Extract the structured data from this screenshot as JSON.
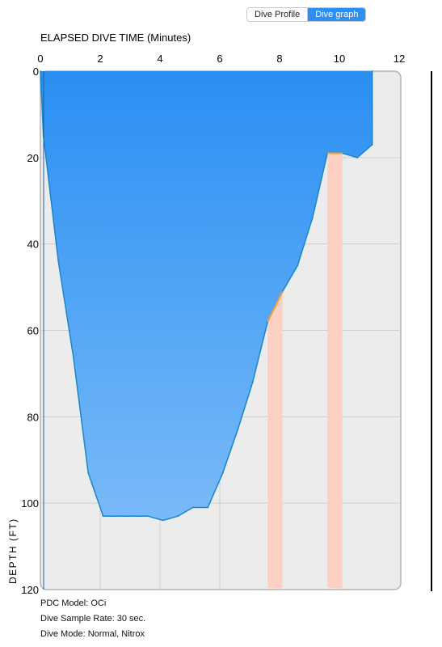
{
  "toolbar": {
    "dive_profile_label": "Dive Profile",
    "dive_graph_label": "Dive graph"
  },
  "chart_data": {
    "type": "area",
    "title": "",
    "xlabel": "ELAPSED DIVE TIME (Minutes)",
    "ylabel": "DEPTH (FT)",
    "xlim": [
      0,
      12
    ],
    "ylim": [
      0,
      120
    ],
    "y_inverted": true,
    "x_axis_position": "top",
    "x_ticks": [
      "0",
      "2",
      "4",
      "6",
      "8",
      "10",
      "12"
    ],
    "y_ticks": [
      "0",
      "20",
      "40",
      "60",
      "80",
      "100",
      "120"
    ],
    "grid": true,
    "series": [
      {
        "color": "#2f95f5",
        "x": [
          0,
          0.1,
          0.6,
          1.1,
          1.6,
          2.1,
          2.6,
          3.1,
          3.6,
          4.1,
          4.6,
          5.1,
          5.6,
          6.1,
          6.6,
          7.1,
          7.6,
          8.1,
          8.6,
          9.1,
          9.6,
          10.1,
          10.6,
          11.1,
          11.1
        ],
        "y": [
          0,
          15,
          44,
          66,
          93,
          103,
          103,
          103,
          103,
          104,
          103,
          101,
          101,
          93,
          83,
          72,
          58,
          51,
          45,
          34,
          19,
          19,
          20,
          17,
          0
        ]
      }
    ],
    "highlights": [
      {
        "x_start": 7.6,
        "x_end": 8.1,
        "color": "#fdd0c4"
      },
      {
        "x_start": 9.6,
        "x_end": 10.1,
        "color": "#fdd0c4"
      }
    ],
    "ascent_warning_color": "#f0a030"
  },
  "info": {
    "model": "PDC Model: OCi",
    "sample_rate": "Dive Sample Rate: 30 sec.",
    "mode": "Dive Mode: Normal, Nitrox"
  }
}
